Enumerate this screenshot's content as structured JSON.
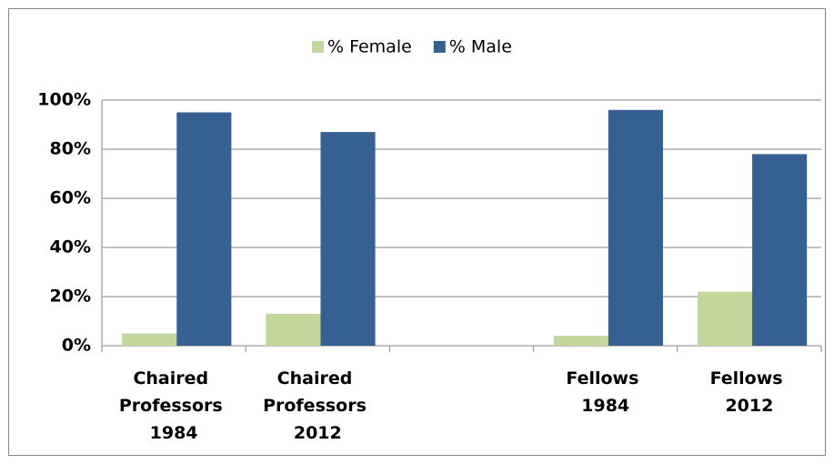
{
  "chart_data": {
    "type": "bar",
    "categories": [
      "Chaired Professors 1984",
      "Chaired Professors 2012",
      null,
      "Fellows 1984",
      "Fellows 2012"
    ],
    "series": [
      {
        "name": "% Female",
        "color": "#c3d69b",
        "values": [
          5,
          13,
          null,
          4,
          22
        ]
      },
      {
        "name": "% Male",
        "color": "#376092",
        "values": [
          95,
          87,
          null,
          96,
          78
        ]
      }
    ],
    "ylim": [
      0,
      100
    ],
    "yticks": [
      {
        "value": 0,
        "label": "0%"
      },
      {
        "value": 20,
        "label": "20%"
      },
      {
        "value": 40,
        "label": "40%"
      },
      {
        "value": 60,
        "label": "60%"
      },
      {
        "value": 80,
        "label": "80%"
      },
      {
        "value": 100,
        "label": "100%"
      }
    ],
    "grid": true,
    "legend": "top"
  }
}
